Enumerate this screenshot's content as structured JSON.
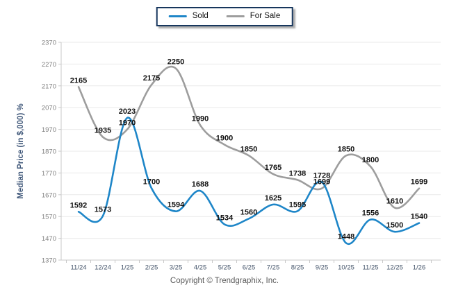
{
  "legend": {
    "items": [
      {
        "label": "Sold"
      },
      {
        "label": "For Sale"
      }
    ]
  },
  "footer": {
    "copyright": "Copyright © Trendgraphix, Inc."
  },
  "chart_data": {
    "type": "line",
    "smooth": true,
    "data_labels": true,
    "grid": true,
    "legend_position": "top-center",
    "title": "",
    "xlabel": "",
    "ylabel": "Median Price (in $,000) %",
    "ylim": [
      1370,
      2370
    ],
    "yticks": [
      2370,
      2270,
      2170,
      2070,
      1970,
      1870,
      1770,
      1670,
      1570,
      1470,
      1370
    ],
    "categories": [
      "11/24",
      "12/24",
      "1/25",
      "2/25",
      "3/25",
      "4/25",
      "5/25",
      "6/25",
      "7/25",
      "8/25",
      "9/25",
      "10/25",
      "11/25",
      "12/25",
      "1/26"
    ],
    "series": [
      {
        "name": "Sold",
        "color": "#1e86c8",
        "values": [
          1592,
          1573,
          2023,
          1700,
          1594,
          1688,
          1534,
          1560,
          1625,
          1595,
          1728,
          1448,
          1556,
          1500,
          1540
        ]
      },
      {
        "name": "For Sale",
        "color": "#9d9d9d",
        "values": [
          2165,
          1935,
          1970,
          2175,
          2250,
          1990,
          1900,
          1850,
          1765,
          1738,
          1699,
          1850,
          1800,
          1610,
          1699
        ]
      }
    ],
    "colors": {
      "grid_line": "#e9e9e9",
      "axis_line": "#c8c8c8",
      "y_tick_text": "#7f7f7f",
      "x_tick_text": "#44546a",
      "data_label_text": "#111111",
      "y_axis_title_text": "#40587a"
    }
  }
}
